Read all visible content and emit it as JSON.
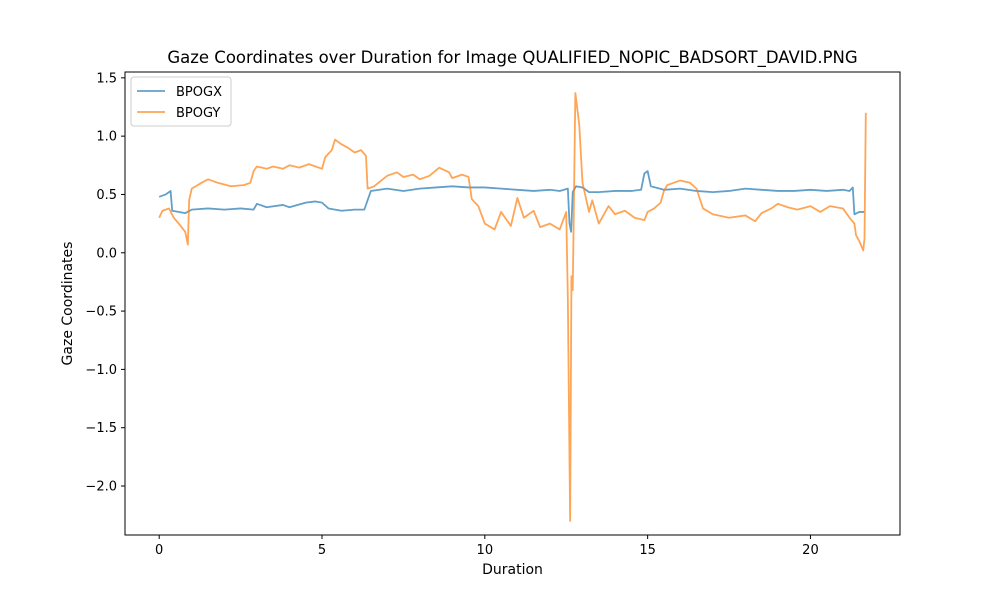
{
  "chart_data": {
    "type": "line",
    "title": "Gaze Coordinates over Duration for Image QUALIFIED_NOPIC_BADSORT_DAVID.PNG",
    "xlabel": "Duration",
    "ylabel": "Gaze Coordinates",
    "xlim": [
      -1.05,
      22.75
    ],
    "ylim": [
      -2.42,
      1.55
    ],
    "x_ticks": [
      0,
      5,
      10,
      15,
      20
    ],
    "y_ticks": [
      -2.0,
      -1.5,
      -1.0,
      -0.5,
      0.0,
      0.5,
      1.0,
      1.5
    ],
    "x_tick_labels": [
      "0",
      "5",
      "10",
      "15",
      "20"
    ],
    "y_tick_labels": [
      "−2.0",
      "−1.5",
      "−1.0",
      "−0.5",
      "0.0",
      "0.5",
      "1.0",
      "1.5"
    ],
    "grid": false,
    "legend_position": "top-left",
    "series": [
      {
        "name": "BPOGX",
        "color": "#1f77b4",
        "points": [
          [
            0,
            0.48
          ],
          [
            0.2,
            0.5
          ],
          [
            0.35,
            0.53
          ],
          [
            0.4,
            0.36
          ],
          [
            0.8,
            0.34
          ],
          [
            1.0,
            0.37
          ],
          [
            1.5,
            0.38
          ],
          [
            2.0,
            0.37
          ],
          [
            2.5,
            0.38
          ],
          [
            2.9,
            0.37
          ],
          [
            3.0,
            0.42
          ],
          [
            3.3,
            0.39
          ],
          [
            3.8,
            0.41
          ],
          [
            4.0,
            0.39
          ],
          [
            4.5,
            0.43
          ],
          [
            4.8,
            0.44
          ],
          [
            5.0,
            0.43
          ],
          [
            5.2,
            0.38
          ],
          [
            5.6,
            0.36
          ],
          [
            6.0,
            0.37
          ],
          [
            6.3,
            0.37
          ],
          [
            6.5,
            0.53
          ],
          [
            7.0,
            0.55
          ],
          [
            7.5,
            0.53
          ],
          [
            8.0,
            0.55
          ],
          [
            8.5,
            0.56
          ],
          [
            9.0,
            0.57
          ],
          [
            9.5,
            0.56
          ],
          [
            10.0,
            0.56
          ],
          [
            10.5,
            0.55
          ],
          [
            11.0,
            0.54
          ],
          [
            11.5,
            0.53
          ],
          [
            12.0,
            0.54
          ],
          [
            12.3,
            0.53
          ],
          [
            12.55,
            0.55
          ],
          [
            12.6,
            0.25
          ],
          [
            12.65,
            0.18
          ],
          [
            12.7,
            0.52
          ],
          [
            12.8,
            0.57
          ],
          [
            13.0,
            0.56
          ],
          [
            13.2,
            0.52
          ],
          [
            13.5,
            0.52
          ],
          [
            14.0,
            0.53
          ],
          [
            14.5,
            0.53
          ],
          [
            14.8,
            0.54
          ],
          [
            14.9,
            0.68
          ],
          [
            15.0,
            0.7
          ],
          [
            15.1,
            0.57
          ],
          [
            15.5,
            0.54
          ],
          [
            16.0,
            0.55
          ],
          [
            16.5,
            0.53
          ],
          [
            17.0,
            0.52
          ],
          [
            17.5,
            0.53
          ],
          [
            18.0,
            0.55
          ],
          [
            18.5,
            0.54
          ],
          [
            19.0,
            0.53
          ],
          [
            19.5,
            0.53
          ],
          [
            20.0,
            0.54
          ],
          [
            20.5,
            0.53
          ],
          [
            21.0,
            0.54
          ],
          [
            21.2,
            0.53
          ],
          [
            21.3,
            0.56
          ],
          [
            21.35,
            0.33
          ],
          [
            21.5,
            0.35
          ],
          [
            21.65,
            0.35
          ]
        ]
      },
      {
        "name": "BPOGY",
        "color": "#ff7f0e",
        "points": [
          [
            0,
            0.3
          ],
          [
            0.1,
            0.36
          ],
          [
            0.3,
            0.38
          ],
          [
            0.45,
            0.3
          ],
          [
            0.6,
            0.25
          ],
          [
            0.8,
            0.18
          ],
          [
            0.88,
            0.07
          ],
          [
            0.92,
            0.45
          ],
          [
            1.0,
            0.55
          ],
          [
            1.3,
            0.6
          ],
          [
            1.5,
            0.63
          ],
          [
            1.8,
            0.6
          ],
          [
            2.2,
            0.57
          ],
          [
            2.6,
            0.58
          ],
          [
            2.8,
            0.6
          ],
          [
            2.9,
            0.7
          ],
          [
            3.0,
            0.74
          ],
          [
            3.3,
            0.72
          ],
          [
            3.5,
            0.74
          ],
          [
            3.8,
            0.72
          ],
          [
            4.0,
            0.75
          ],
          [
            4.3,
            0.73
          ],
          [
            4.6,
            0.76
          ],
          [
            5.0,
            0.72
          ],
          [
            5.1,
            0.82
          ],
          [
            5.3,
            0.88
          ],
          [
            5.4,
            0.97
          ],
          [
            5.6,
            0.93
          ],
          [
            5.8,
            0.9
          ],
          [
            6.0,
            0.86
          ],
          [
            6.2,
            0.88
          ],
          [
            6.35,
            0.83
          ],
          [
            6.4,
            0.55
          ],
          [
            6.6,
            0.57
          ],
          [
            7.0,
            0.66
          ],
          [
            7.3,
            0.69
          ],
          [
            7.5,
            0.65
          ],
          [
            7.8,
            0.67
          ],
          [
            8.0,
            0.63
          ],
          [
            8.3,
            0.66
          ],
          [
            8.6,
            0.73
          ],
          [
            8.9,
            0.69
          ],
          [
            9.0,
            0.64
          ],
          [
            9.3,
            0.67
          ],
          [
            9.5,
            0.65
          ],
          [
            9.6,
            0.46
          ],
          [
            9.8,
            0.4
          ],
          [
            10.0,
            0.25
          ],
          [
            10.3,
            0.2
          ],
          [
            10.5,
            0.35
          ],
          [
            10.8,
            0.23
          ],
          [
            11.0,
            0.47
          ],
          [
            11.2,
            0.3
          ],
          [
            11.5,
            0.36
          ],
          [
            11.7,
            0.22
          ],
          [
            12.0,
            0.25
          ],
          [
            12.3,
            0.2
          ],
          [
            12.5,
            0.35
          ],
          [
            12.55,
            -0.4
          ],
          [
            12.62,
            -2.3
          ],
          [
            12.66,
            -0.2
          ],
          [
            12.7,
            -0.32
          ],
          [
            12.73,
            0.3
          ],
          [
            12.78,
            1.37
          ],
          [
            12.9,
            1.1
          ],
          [
            13.0,
            0.6
          ],
          [
            13.2,
            0.35
          ],
          [
            13.3,
            0.45
          ],
          [
            13.5,
            0.25
          ],
          [
            13.8,
            0.4
          ],
          [
            14.0,
            0.33
          ],
          [
            14.3,
            0.36
          ],
          [
            14.6,
            0.3
          ],
          [
            14.9,
            0.28
          ],
          [
            15.0,
            0.35
          ],
          [
            15.2,
            0.38
          ],
          [
            15.4,
            0.43
          ],
          [
            15.5,
            0.53
          ],
          [
            15.6,
            0.58
          ],
          [
            15.8,
            0.6
          ],
          [
            16.0,
            0.62
          ],
          [
            16.3,
            0.6
          ],
          [
            16.5,
            0.55
          ],
          [
            16.7,
            0.38
          ],
          [
            17.0,
            0.33
          ],
          [
            17.5,
            0.3
          ],
          [
            18.0,
            0.32
          ],
          [
            18.3,
            0.27
          ],
          [
            18.5,
            0.34
          ],
          [
            18.8,
            0.38
          ],
          [
            19.0,
            0.42
          ],
          [
            19.3,
            0.39
          ],
          [
            19.6,
            0.37
          ],
          [
            20.0,
            0.4
          ],
          [
            20.3,
            0.35
          ],
          [
            20.6,
            0.4
          ],
          [
            21.0,
            0.38
          ],
          [
            21.2,
            0.3
          ],
          [
            21.35,
            0.25
          ],
          [
            21.4,
            0.15
          ],
          [
            21.5,
            0.1
          ],
          [
            21.62,
            0.02
          ],
          [
            21.66,
            0.12
          ],
          [
            21.7,
            1.2
          ]
        ]
      }
    ]
  }
}
